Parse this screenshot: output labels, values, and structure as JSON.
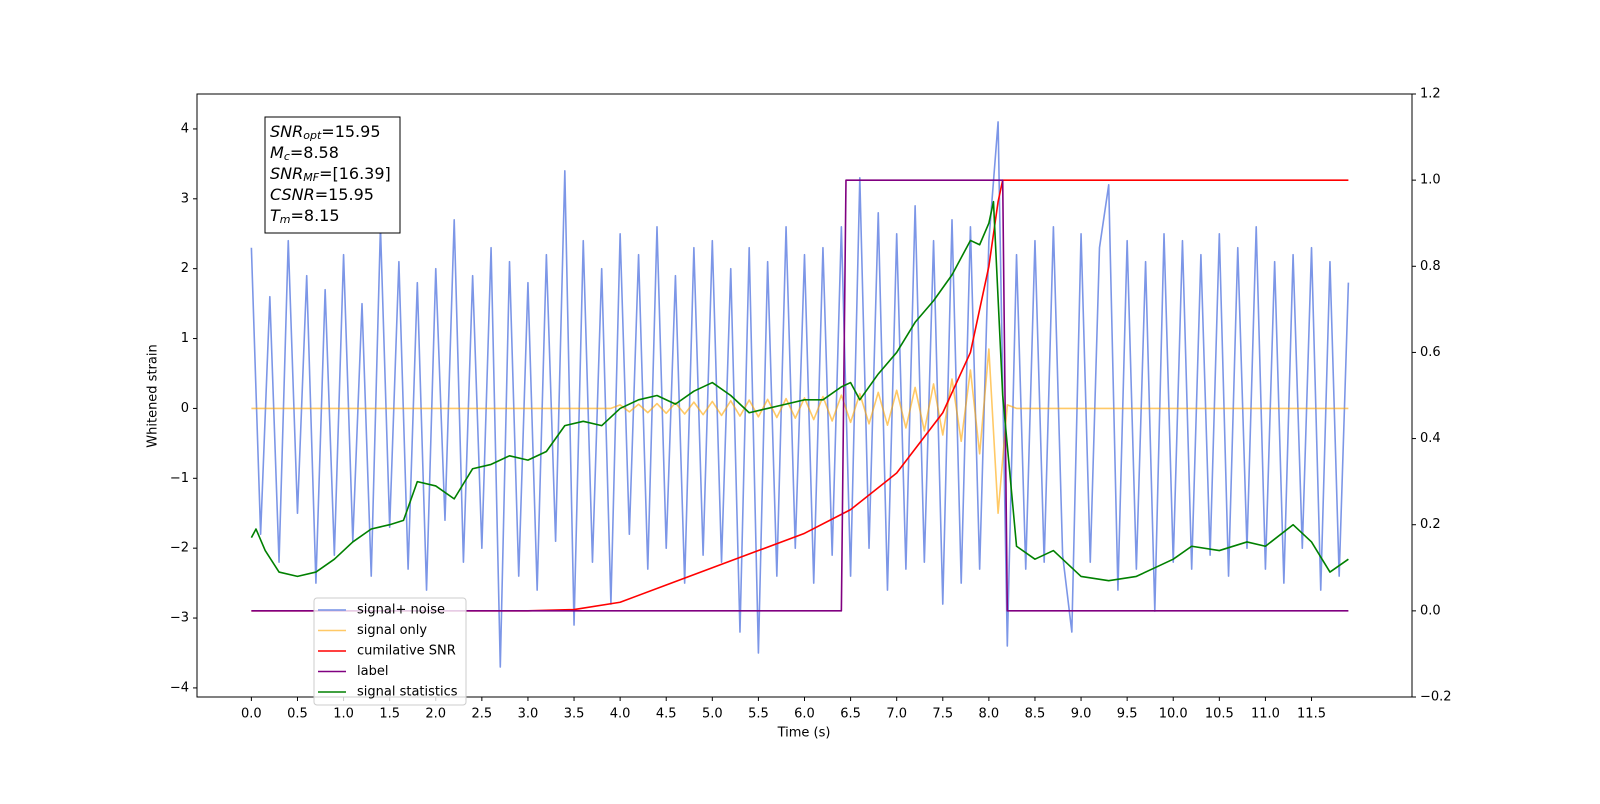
{
  "chart_data": {
    "type": "line",
    "xlabel": "Time (s)",
    "ylabel": "Whitened strain",
    "xlim": [
      -0.59,
      12.59
    ],
    "ylim": [
      -4.13,
      4.5
    ],
    "y2lim": [
      -0.2,
      1.2
    ],
    "xticks": [
      {
        "value": 0,
        "label": "0.0"
      },
      0.5,
      {
        "value": 1,
        "label": "1.0"
      },
      1.5,
      {
        "value": 2,
        "label": "2.0"
      },
      2.5,
      {
        "value": 3,
        "label": "3.0"
      },
      3.5,
      {
        "value": 4,
        "label": "4.0"
      },
      4.5,
      {
        "value": 5,
        "label": "5.0"
      },
      5.5,
      {
        "value": 6,
        "label": "6.0"
      },
      6.5,
      {
        "value": 7,
        "label": "7.0"
      },
      7.5,
      {
        "value": 8,
        "label": "8.0"
      },
      8.5,
      {
        "value": 9,
        "label": "9.0"
      },
      9.5,
      {
        "value": 10,
        "label": "10.0"
      },
      10.5,
      {
        "value": 11,
        "label": "11.0"
      },
      11.5
    ],
    "yticks": [
      {
        "value": -4,
        "label": "−4"
      },
      {
        "value": -3,
        "label": "−3"
      },
      {
        "value": -2,
        "label": "−2"
      },
      {
        "value": -1,
        "label": "−1"
      },
      0,
      1,
      2,
      3,
      4
    ],
    "y2ticks": [
      {
        "value": -0.2,
        "label": "−0.2"
      },
      {
        "value": 0,
        "label": "0.0"
      },
      0.2,
      0.4,
      0.6,
      0.8,
      {
        "value": 1,
        "label": "1.0"
      },
      1.2
    ],
    "annotation": [
      {
        "main": "SNR",
        "sub": "opt",
        "value": "=15.95"
      },
      {
        "main": "M",
        "sub": "c",
        "value": "=8.58"
      },
      {
        "main": "SNR",
        "sub": "MF",
        "value": "=[16.39]"
      },
      {
        "main": "CSNR",
        "sub": null,
        "value": "=15.95"
      },
      {
        "main": "T",
        "sub": "m",
        "value": "=8.15"
      }
    ],
    "legend": "lower left",
    "series": [
      {
        "name": "signal+ noise",
        "color": "#7590e6",
        "x": [
          0.0,
          0.1,
          0.2,
          0.3,
          0.4,
          0.5,
          0.6,
          0.7,
          0.8,
          0.9,
          1.0,
          1.1,
          1.2,
          1.3,
          1.4,
          1.5,
          1.6,
          1.7,
          1.8,
          1.9,
          2.0,
          2.1,
          2.2,
          2.3,
          2.4,
          2.5,
          2.6,
          2.7,
          2.8,
          2.9,
          3.0,
          3.1,
          3.2,
          3.3,
          3.4,
          3.5,
          3.6,
          3.7,
          3.8,
          3.9,
          4.0,
          4.1,
          4.2,
          4.3,
          4.4,
          4.5,
          4.6,
          4.7,
          4.8,
          4.9,
          5.0,
          5.1,
          5.2,
          5.3,
          5.4,
          5.5,
          5.6,
          5.7,
          5.8,
          5.9,
          6.0,
          6.1,
          6.2,
          6.3,
          6.4,
          6.5,
          6.6,
          6.7,
          6.8,
          6.9,
          7.0,
          7.1,
          7.2,
          7.3,
          7.4,
          7.5,
          7.6,
          7.7,
          7.8,
          7.9,
          8.0,
          8.1,
          8.2,
          8.3,
          8.4,
          8.5,
          8.6,
          8.7,
          8.8,
          8.9,
          9.0,
          9.1,
          9.2,
          9.3,
          9.4,
          9.5,
          9.6,
          9.7,
          9.8,
          9.9,
          10.0,
          10.1,
          10.2,
          10.3,
          10.4,
          10.5,
          10.6,
          10.7,
          10.8,
          10.9,
          11.0,
          11.1,
          11.2,
          11.3,
          11.4,
          11.5,
          11.6,
          11.7,
          11.8,
          11.9
        ],
        "values": [
          2.3,
          -1.8,
          1.6,
          -2.2,
          2.4,
          -1.5,
          1.9,
          -2.5,
          1.7,
          -2.1,
          2.2,
          -1.9,
          1.5,
          -2.4,
          2.6,
          -1.7,
          2.1,
          -2.3,
          1.8,
          -2.6,
          2.0,
          -1.6,
          2.7,
          -2.2,
          1.9,
          -2.0,
          2.3,
          -3.7,
          2.1,
          -2.4,
          1.8,
          -2.6,
          2.2,
          -1.9,
          3.4,
          -3.1,
          2.4,
          -2.2,
          2.0,
          -2.8,
          2.5,
          -1.8,
          2.2,
          -2.3,
          2.6,
          -2.0,
          1.9,
          -2.5,
          2.3,
          -2.1,
          2.4,
          -2.2,
          2.0,
          -3.2,
          2.3,
          -3.5,
          2.1,
          -2.4,
          2.6,
          -2.0,
          2.2,
          -2.5,
          2.3,
          -2.1,
          2.6,
          -2.4,
          3.3,
          -2.0,
          2.8,
          -2.6,
          2.5,
          -2.3,
          2.9,
          -2.2,
          2.4,
          -2.8,
          2.7,
          -2.5,
          2.6,
          -2.3,
          2.4,
          4.1,
          -3.4,
          2.2,
          -2.3,
          2.4,
          -2.2,
          2.6,
          -2.1,
          -3.2,
          2.5,
          -2.2,
          2.3,
          3.2,
          -2.6,
          2.4,
          -2.3,
          2.1,
          -2.9,
          2.5,
          -2.2,
          2.4,
          -2.3,
          2.2,
          -2.1,
          2.5,
          -2.4,
          2.3,
          -2.0,
          2.6,
          -2.3,
          2.1,
          -2.5,
          2.2,
          -2.0,
          2.3,
          -2.6,
          2.1,
          -2.4,
          1.8
        ]
      },
      {
        "name": "signal only",
        "color": "#ffa500",
        "x": [
          0.0,
          0.1,
          0.2,
          0.3,
          0.4,
          0.5,
          0.6,
          0.7,
          0.8,
          0.9,
          1.0,
          1.1,
          1.2,
          1.3,
          1.4,
          1.5,
          1.6,
          1.7,
          1.8,
          1.9,
          2.0,
          2.1,
          2.2,
          2.3,
          2.4,
          2.5,
          2.6,
          2.7,
          2.8,
          2.9,
          3.0,
          3.1,
          3.2,
          3.3,
          3.4,
          3.5,
          3.6,
          3.7,
          3.8,
          3.9,
          4.0,
          4.1,
          4.2,
          4.3,
          4.4,
          4.5,
          4.6,
          4.7,
          4.8,
          4.9,
          5.0,
          5.1,
          5.2,
          5.3,
          5.4,
          5.5,
          5.6,
          5.7,
          5.8,
          5.9,
          6.0,
          6.1,
          6.2,
          6.3,
          6.4,
          6.5,
          6.6,
          6.7,
          6.8,
          6.9,
          7.0,
          7.1,
          7.2,
          7.3,
          7.4,
          7.5,
          7.6,
          7.7,
          7.8,
          7.9,
          8.0,
          8.1,
          8.2,
          8.3,
          8.4,
          8.5,
          8.6,
          8.7,
          8.8,
          8.9,
          9.0,
          9.1,
          9.2,
          9.3,
          9.4,
          9.5,
          9.6,
          9.7,
          9.8,
          9.9,
          10.0,
          10.1,
          10.2,
          10.3,
          10.4,
          10.5,
          10.6,
          10.7,
          10.8,
          10.9,
          11.0,
          11.1,
          11.2,
          11.3,
          11.4,
          11.5,
          11.6,
          11.7,
          11.8,
          11.9
        ],
        "values": [
          0,
          0,
          0,
          0,
          0,
          0,
          0,
          0,
          0,
          0,
          0,
          0,
          0,
          0,
          0,
          0,
          0,
          0,
          0,
          0,
          0,
          0,
          0,
          0,
          0,
          0,
          0,
          0,
          0,
          0,
          0,
          0,
          0,
          0,
          0,
          0,
          0,
          0,
          0,
          0,
          0.05,
          -0.05,
          0.06,
          -0.06,
          0.07,
          -0.07,
          0.08,
          -0.08,
          0.09,
          -0.09,
          0.1,
          -0.1,
          0.11,
          -0.11,
          0.12,
          -0.12,
          0.13,
          -0.13,
          0.14,
          -0.14,
          0.15,
          -0.16,
          0.17,
          -0.18,
          0.19,
          -0.2,
          0.21,
          -0.22,
          0.23,
          -0.24,
          0.26,
          -0.28,
          0.3,
          -0.32,
          0.35,
          -0.38,
          0.42,
          -0.47,
          0.55,
          -0.65,
          0.85,
          -1.5,
          0.05,
          0,
          0,
          0,
          0,
          0,
          0,
          0,
          0,
          0,
          0,
          0,
          0,
          0,
          0,
          0,
          0,
          0,
          0,
          0,
          0,
          0,
          0,
          0,
          0,
          0,
          0,
          0,
          0,
          0,
          0,
          0,
          0,
          0,
          0,
          0,
          0,
          0
        ]
      },
      {
        "name": "cumilative SNR",
        "color": "#ff0000",
        "axis": "y2",
        "x": [
          0,
          1,
          2,
          3,
          3.5,
          4,
          4.5,
          5,
          5.5,
          6,
          6.5,
          7,
          7.5,
          7.8,
          8.0,
          8.1,
          8.15,
          11.9
        ],
        "values": [
          0,
          0,
          0,
          0,
          0.003,
          0.02,
          0.06,
          0.1,
          0.14,
          0.18,
          0.235,
          0.32,
          0.46,
          0.6,
          0.8,
          0.95,
          1.0,
          1.0
        ]
      },
      {
        "name": "label",
        "color": "#800080",
        "axis": "y2",
        "x": [
          0,
          6.4,
          6.45,
          8.15,
          8.2,
          11.9
        ],
        "values": [
          0,
          0,
          1,
          1,
          0,
          0
        ]
      },
      {
        "name": "signal statistics",
        "color": "#008000",
        "axis": "y2",
        "x": [
          0,
          0.05,
          0.15,
          0.3,
          0.5,
          0.7,
          0.9,
          1.1,
          1.3,
          1.5,
          1.65,
          1.8,
          2.0,
          2.2,
          2.4,
          2.6,
          2.8,
          3.0,
          3.2,
          3.4,
          3.6,
          3.8,
          4.0,
          4.2,
          4.4,
          4.6,
          4.8,
          5.0,
          5.2,
          5.4,
          5.6,
          5.8,
          6.0,
          6.2,
          6.4,
          6.5,
          6.6,
          6.8,
          7.0,
          7.2,
          7.4,
          7.6,
          7.8,
          7.9,
          8.0,
          8.05,
          8.15,
          8.3,
          8.5,
          8.7,
          9.0,
          9.3,
          9.6,
          9.8,
          10.0,
          10.2,
          10.5,
          10.8,
          11.0,
          11.3,
          11.5,
          11.7,
          11.9
        ],
        "values": [
          0.17,
          0.19,
          0.14,
          0.09,
          0.08,
          0.09,
          0.12,
          0.16,
          0.19,
          0.2,
          0.21,
          0.3,
          0.29,
          0.26,
          0.33,
          0.34,
          0.36,
          0.35,
          0.37,
          0.43,
          0.44,
          0.43,
          0.47,
          0.49,
          0.5,
          0.48,
          0.51,
          0.53,
          0.5,
          0.46,
          0.47,
          0.48,
          0.49,
          0.49,
          0.52,
          0.53,
          0.49,
          0.55,
          0.6,
          0.67,
          0.72,
          0.78,
          0.86,
          0.85,
          0.9,
          0.95,
          0.5,
          0.15,
          0.12,
          0.14,
          0.08,
          0.07,
          0.08,
          0.1,
          0.12,
          0.15,
          0.14,
          0.16,
          0.15,
          0.2,
          0.16,
          0.09,
          0.12
        ]
      }
    ]
  }
}
